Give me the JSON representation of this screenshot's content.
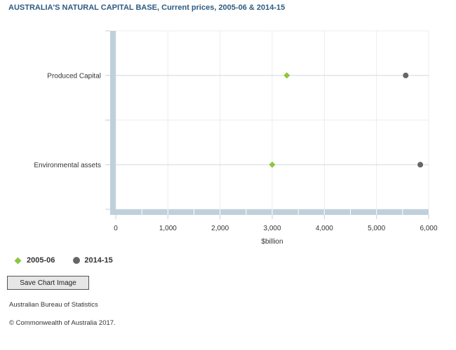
{
  "title": "AUSTRALIA'S NATURAL CAPITAL BASE, Current prices, 2005-06 & 2014-15",
  "chart_data": {
    "type": "scatter",
    "orientation": "horizontal",
    "categories": [
      "Produced Capital",
      "Environmental assets"
    ],
    "series": [
      {
        "name": "2005-06",
        "marker": "diamond",
        "color": "#8cc63f",
        "values": [
          3280,
          3000
        ]
      },
      {
        "name": "2014-15",
        "marker": "circle",
        "color": "#666666",
        "values": [
          5560,
          5840
        ]
      }
    ],
    "xlabel": "$billion",
    "xlim": [
      0,
      6000
    ],
    "xticks": [
      0,
      1000,
      2000,
      3000,
      4000,
      5000,
      6000
    ],
    "xtick_labels": [
      "0",
      "1,000",
      "2,000",
      "3,000",
      "4,000",
      "5,000",
      "6,000"
    ],
    "grid": true,
    "legend_position": "bottom-left"
  },
  "legend": {
    "items": [
      "2005-06",
      "2014-15"
    ]
  },
  "buttons": {
    "save_chart": "Save Chart Image"
  },
  "footer": {
    "source": "Australian Bureau of Statistics",
    "copyright": "© Commonwealth of Australia 2017."
  }
}
